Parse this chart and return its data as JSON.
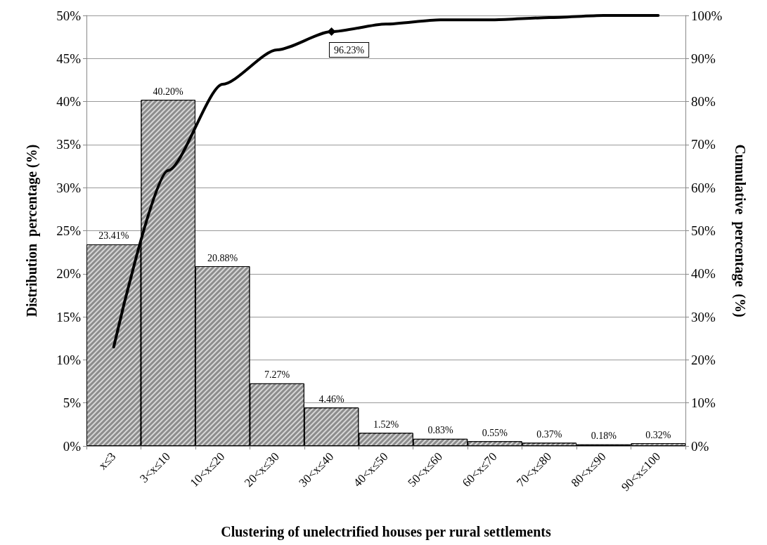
{
  "chart_data": {
    "type": "bar",
    "xlabel": "Clustering of unelectrified houses per rural settlements",
    "ylabel": "Distribution  percentage (%)",
    "y2label": "Cumulative  percentage  (%)",
    "categories": [
      "x≤3",
      "3<x≤10",
      "10<x≤20",
      "20<x≤30",
      "30<x≤40",
      "40<x≤50",
      "50<x≤60",
      "60<x≤70",
      "70<x≤80",
      "80<x≤90",
      "90<x≤100"
    ],
    "series": [
      {
        "color": "#8c8c8c",
        "values": [
          23.41,
          40.2,
          20.88,
          7.27,
          4.46,
          1.52,
          0.83,
          0.55,
          0.37,
          0.18,
          0.32
        ],
        "value_labels": [
          "23.41%",
          "40.20%",
          "20.88%",
          "7.27%",
          "4.46%",
          "1.52%",
          "0.83%",
          "0.55%",
          "0.37%",
          "0.18%",
          "0.32%"
        ]
      },
      {
        "type": "line",
        "axis": "y2",
        "color": "#000000",
        "marker": "none",
        "line_style": "solid",
        "values": [
          23,
          64,
          84,
          92,
          96.23,
          98,
          99,
          99,
          99.5,
          100,
          100
        ],
        "value_labels": [
          null,
          null,
          null,
          null,
          "96.23%",
          null,
          null,
          null,
          null,
          null,
          null
        ]
      }
    ],
    "ylim": [
      0,
      50
    ],
    "yticks": [
      {
        "value": 0,
        "label": "0%"
      },
      {
        "value": 5,
        "label": "5%"
      },
      {
        "value": 10,
        "label": "10%"
      },
      {
        "value": 15,
        "label": "15%"
      },
      {
        "value": 20,
        "label": "20%"
      },
      {
        "value": 25,
        "label": "25%"
      },
      {
        "value": 30,
        "label": "30%"
      },
      {
        "value": 35,
        "label": "35%"
      },
      {
        "value": 40,
        "label": "40%"
      },
      {
        "value": 45,
        "label": "45%"
      },
      {
        "value": 50,
        "label": "50%"
      }
    ],
    "y2lim": [
      0,
      100
    ],
    "y2ticks": [
      {
        "value": 0,
        "label": "0%"
      },
      {
        "value": 10,
        "label": "10%"
      },
      {
        "value": 20,
        "label": "20%"
      },
      {
        "value": 30,
        "label": "30%"
      },
      {
        "value": 40,
        "label": "40%"
      },
      {
        "value": 50,
        "label": "50%"
      },
      {
        "value": 60,
        "label": "60%"
      },
      {
        "value": 70,
        "label": "70%"
      },
      {
        "value": 80,
        "label": "80%"
      },
      {
        "value": 90,
        "label": "90%"
      },
      {
        "value": 100,
        "label": "100%"
      }
    ],
    "grid": "y"
  }
}
